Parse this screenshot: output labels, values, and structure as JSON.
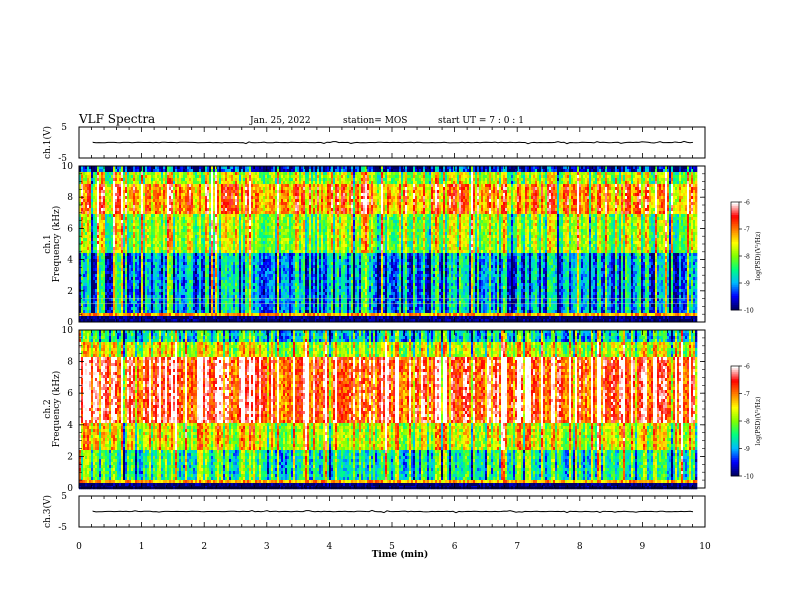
{
  "header": {
    "title": "VLF Spectra",
    "date": "Jan. 25, 2022",
    "station": "station= MOS",
    "start": "start  UT =   7 : 0  : 1"
  },
  "chart_data": [
    {
      "type": "line",
      "ylabel": "ch.1(V)",
      "ylim": [
        -5,
        5
      ],
      "y_ticklabels": [
        "5",
        "-5"
      ],
      "xlim": [
        0,
        10
      ],
      "level": 0
    },
    {
      "type": "heatmap",
      "ylabel": "ch.1\nFrequency (kHz)",
      "ylim": [
        0,
        10
      ],
      "y_ticks": [
        0,
        2,
        4,
        6,
        8,
        10
      ],
      "y_ticklabels": [
        "0",
        "2",
        "4",
        "6",
        "8",
        "10"
      ],
      "xlim": [
        0,
        9.85
      ],
      "colorbar": {
        "label": "log(PSD)(V²/Hz)",
        "range": [
          -10,
          -6
        ],
        "ticks": [
          -10,
          -9,
          -8,
          -7,
          -6
        ],
        "ticklabels": [
          "-10",
          "-9",
          "-8",
          "-7",
          "-6"
        ],
        "colormap": [
          "#000060",
          "#0000ff",
          "#00bbff",
          "#00ff80",
          "#80ff00",
          "#ffff00",
          "#ff8000",
          "#ff0000",
          "#ffffff"
        ]
      },
      "band_levels": [
        {
          "freq_range": [
            9.6,
            10.0
          ],
          "log_psd": -9.6
        },
        {
          "freq_range": [
            8.8,
            9.6
          ],
          "log_psd": -7.8
        },
        {
          "freq_range": [
            7.0,
            8.8
          ],
          "log_psd": -7.0
        },
        {
          "freq_range": [
            4.5,
            7.0
          ],
          "log_psd": -7.9
        },
        {
          "freq_range": [
            0.4,
            4.5
          ],
          "log_psd": -9.0
        },
        {
          "freq_range": [
            0.0,
            0.4
          ],
          "log_psd": -10.0
        }
      ]
    },
    {
      "type": "heatmap",
      "ylabel": "ch.2\nFrequency (kHz)",
      "ylim": [
        0,
        10
      ],
      "y_ticks": [
        0,
        2,
        4,
        6,
        8,
        10
      ],
      "y_ticklabels": [
        "0",
        "2",
        "4",
        "6",
        "8",
        "10"
      ],
      "xlim": [
        0,
        9.85
      ],
      "colorbar": {
        "label": "log(PSD)(V²/Hz)",
        "range": [
          -10,
          -6
        ],
        "ticks": [
          -10,
          -9,
          -8,
          -7,
          -6
        ],
        "ticklabels": [
          "-10",
          "-9",
          "-8",
          "-7",
          "-6"
        ],
        "colormap": [
          "#000060",
          "#0000ff",
          "#00bbff",
          "#00ff80",
          "#80ff00",
          "#ffff00",
          "#ff8000",
          "#ff0000",
          "#ffffff"
        ]
      },
      "band_levels": [
        {
          "freq_range": [
            9.2,
            10.0
          ],
          "log_psd": -8.6
        },
        {
          "freq_range": [
            8.2,
            9.2
          ],
          "log_psd": -7.6
        },
        {
          "freq_range": [
            4.2,
            8.2
          ],
          "log_psd": -6.4
        },
        {
          "freq_range": [
            2.5,
            4.2
          ],
          "log_psd": -7.5
        },
        {
          "freq_range": [
            0.3,
            2.5
          ],
          "log_psd": -8.4
        },
        {
          "freq_range": [
            0.0,
            0.3
          ],
          "log_psd": -10.0
        }
      ]
    },
    {
      "type": "line",
      "ylabel": "ch.3(V)",
      "ylim": [
        -5,
        5
      ],
      "y_ticklabels": [
        "5",
        "-5"
      ],
      "xlim": [
        0,
        10
      ],
      "level": 0
    }
  ],
  "xaxis": {
    "label": "Time  (min)",
    "ticks": [
      0,
      1,
      2,
      3,
      4,
      5,
      6,
      7,
      8,
      9,
      10
    ],
    "ticklabels": [
      "0",
      "1",
      "2",
      "3",
      "4",
      "5",
      "6",
      "7",
      "8",
      "9",
      "10"
    ],
    "range": [
      0,
      10
    ]
  }
}
